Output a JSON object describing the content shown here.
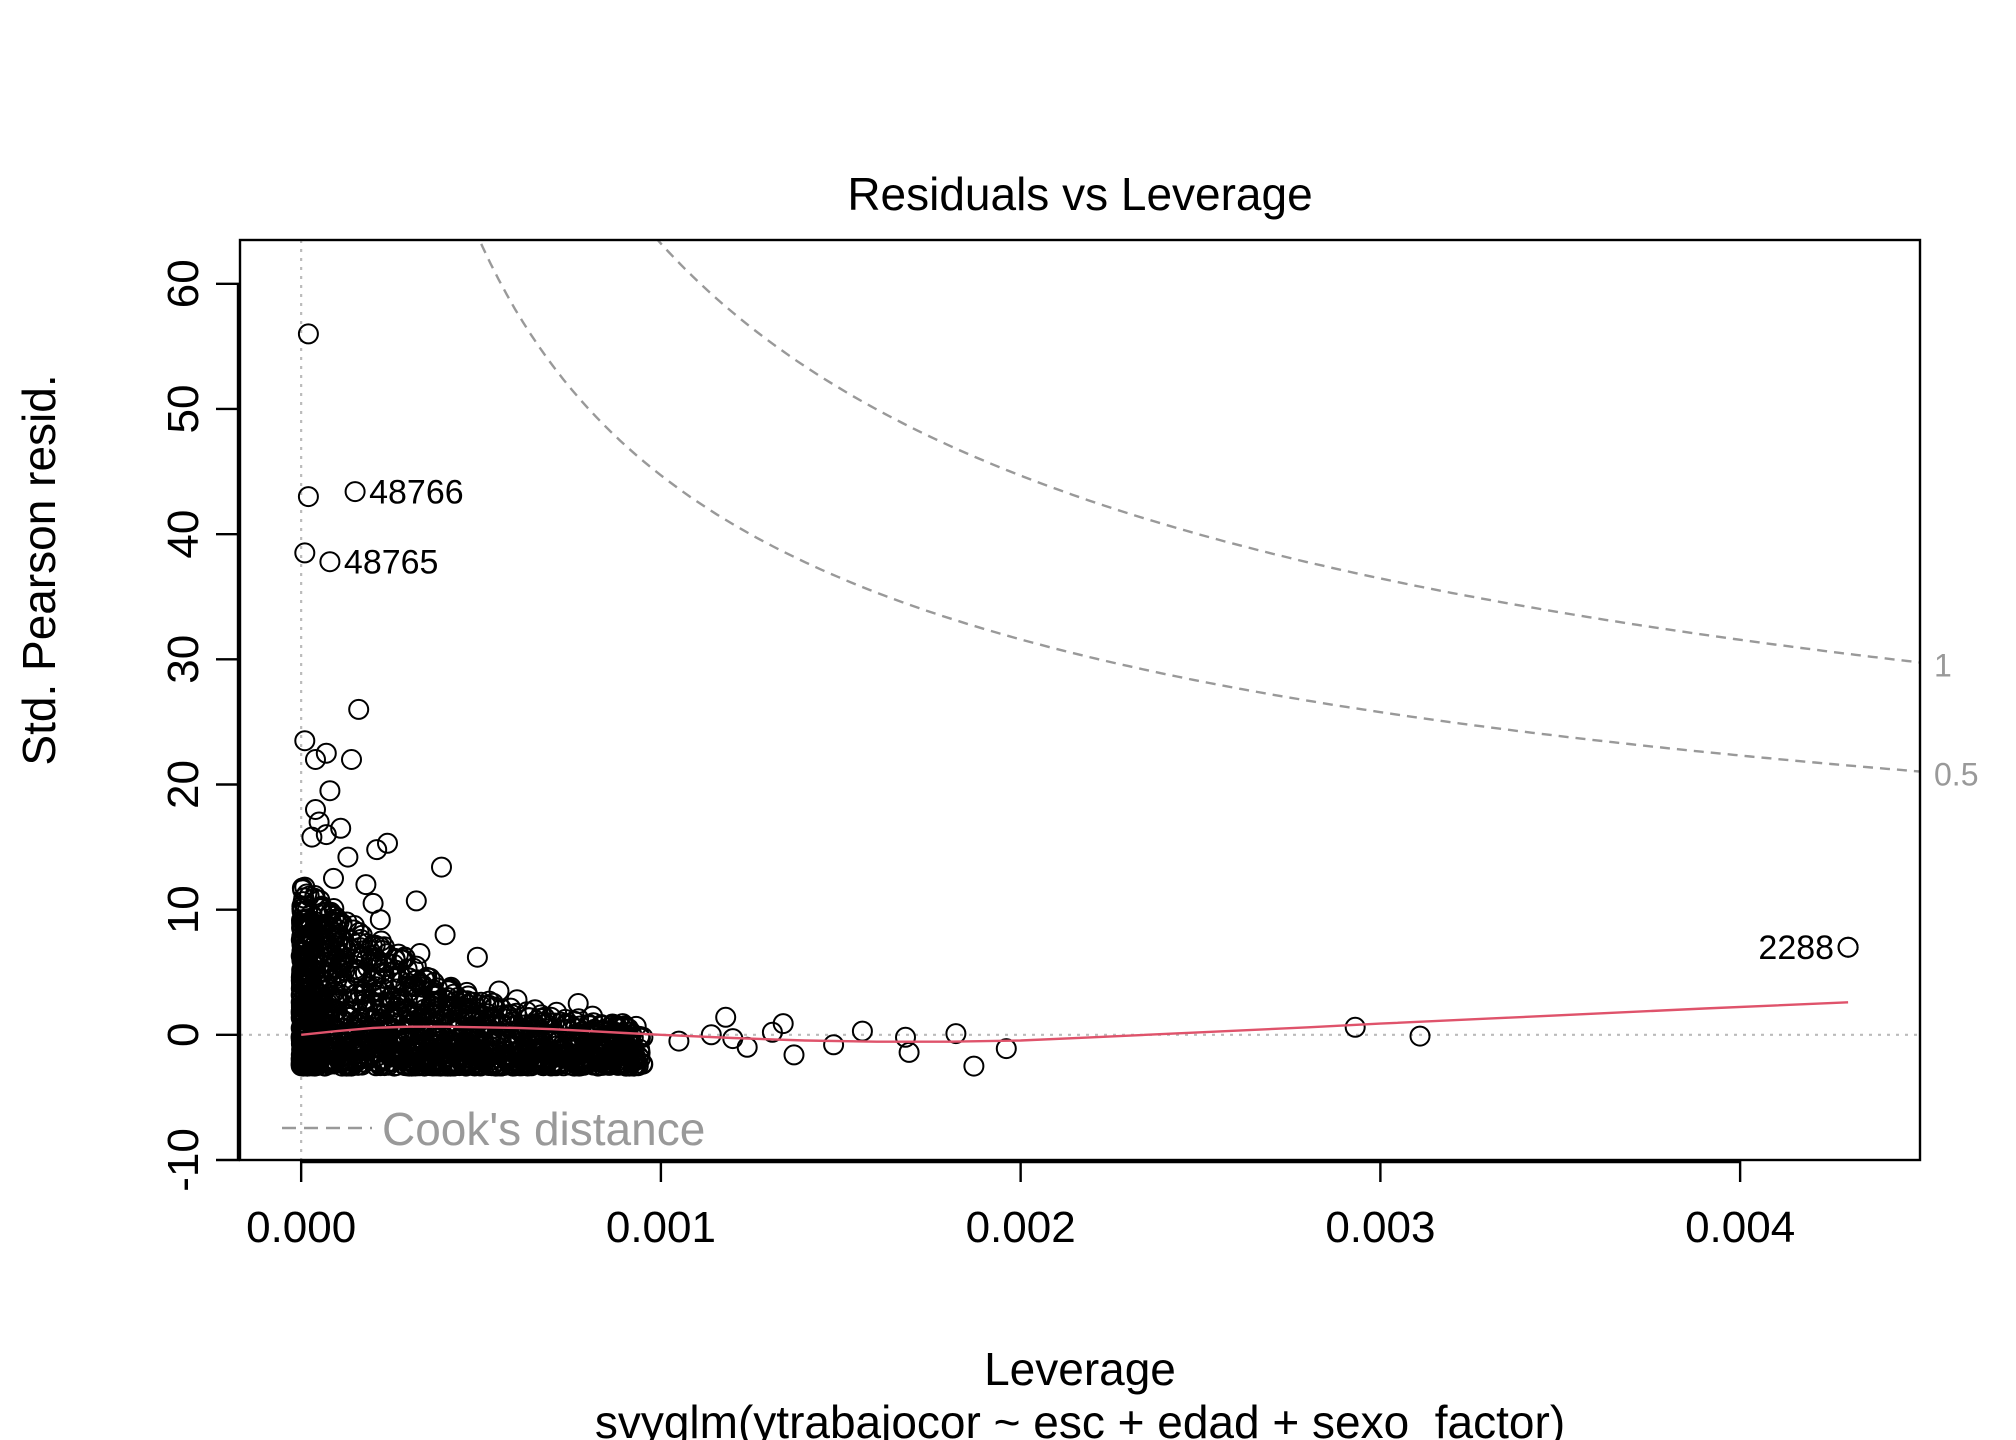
{
  "chart_data": {
    "type": "scatter",
    "title": "Residuals vs Leverage",
    "xlabel": "Leverage",
    "subtitle": "svyglm(ytrabajocor ~ esc + edad + sexo_factor)",
    "ylabel": "Std. Pearson resid.",
    "xlim": [
      -0.00017,
      0.0045
    ],
    "ylim": [
      -10,
      63.5
    ],
    "x_ticks": [
      "0.000",
      "0.001",
      "0.002",
      "0.003",
      "0.004"
    ],
    "x_tick_values": [
      0,
      0.001,
      0.002,
      0.003,
      0.004
    ],
    "y_ticks": [
      "-10",
      "0",
      "10",
      "20",
      "30",
      "40",
      "50",
      "60"
    ],
    "y_tick_values": [
      -10,
      0,
      10,
      20,
      30,
      40,
      50,
      60
    ],
    "legend": {
      "label": "Cook's distance",
      "placement": "bottom-left",
      "style": "dashed grey"
    },
    "reference_lines": {
      "h": 0,
      "v": 0,
      "style": "dotted grey"
    },
    "cooks_contours": [
      {
        "label": "1",
        "level": 1
      },
      {
        "label": "0.5",
        "level": 0.5
      }
    ],
    "labeled_points": [
      {
        "label": "48766",
        "x": 0.00015,
        "y": 43.4
      },
      {
        "label": "48765",
        "x": 8e-05,
        "y": 37.8
      },
      {
        "label": "2288",
        "x": 0.0043,
        "y": 7.0
      }
    ],
    "outlier_points": [
      {
        "x": 2e-05,
        "y": 56.0
      },
      {
        "x": 2e-05,
        "y": 43.0
      },
      {
        "x": 1e-05,
        "y": 38.5
      },
      {
        "x": 0.00016,
        "y": 26.0
      },
      {
        "x": 1e-05,
        "y": 23.5
      },
      {
        "x": 7e-05,
        "y": 22.5
      },
      {
        "x": 0.00014,
        "y": 22.0
      },
      {
        "x": 4e-05,
        "y": 22.0
      },
      {
        "x": 8e-05,
        "y": 19.5
      },
      {
        "x": 4e-05,
        "y": 18.0
      },
      {
        "x": 5e-05,
        "y": 17.0
      },
      {
        "x": 0.00011,
        "y": 16.5
      },
      {
        "x": 7e-05,
        "y": 16.0
      },
      {
        "x": 3e-05,
        "y": 15.8
      },
      {
        "x": 0.00024,
        "y": 15.3
      },
      {
        "x": 0.00021,
        "y": 14.8
      },
      {
        "x": 0.00013,
        "y": 14.2
      },
      {
        "x": 0.00039,
        "y": 13.4
      },
      {
        "x": 9e-05,
        "y": 12.5
      },
      {
        "x": 0.00018,
        "y": 12.0
      },
      {
        "x": 1e-05,
        "y": 11.8
      },
      {
        "x": 0.00032,
        "y": 10.7
      },
      {
        "x": 0.0002,
        "y": 10.5
      },
      {
        "x": 0.00022,
        "y": 9.2
      },
      {
        "x": 0.0004,
        "y": 8.0
      },
      {
        "x": 0.00033,
        "y": 6.5
      },
      {
        "x": 0.00049,
        "y": 6.2
      },
      {
        "x": 0.00055,
        "y": 3.5
      },
      {
        "x": 0.0006,
        "y": 2.8
      },
      {
        "x": 0.00065,
        "y": 2.0
      },
      {
        "x": 0.00071,
        "y": 1.8
      },
      {
        "x": 0.00077,
        "y": 2.5
      },
      {
        "x": 0.00081,
        "y": 1.5
      },
      {
        "x": 0.00087,
        "y": 0.8
      },
      {
        "x": 0.00091,
        "y": 0.5
      },
      {
        "x": 0.00095,
        "y": -0.2
      },
      {
        "x": 0.00105,
        "y": -0.5
      },
      {
        "x": 0.00114,
        "y": 0.0
      },
      {
        "x": 0.00118,
        "y": 1.4
      },
      {
        "x": 0.0012,
        "y": -0.3
      },
      {
        "x": 0.00124,
        "y": -1.0
      },
      {
        "x": 0.00131,
        "y": 0.2
      },
      {
        "x": 0.00134,
        "y": 0.9
      },
      {
        "x": 0.00137,
        "y": -1.6
      },
      {
        "x": 0.00148,
        "y": -0.8
      },
      {
        "x": 0.00156,
        "y": 0.3
      },
      {
        "x": 0.00168,
        "y": -0.2
      },
      {
        "x": 0.00169,
        "y": -1.4
      },
      {
        "x": 0.00182,
        "y": 0.1
      },
      {
        "x": 0.00187,
        "y": -2.5
      },
      {
        "x": 0.00196,
        "y": -1.1
      },
      {
        "x": 0.00293,
        "y": 0.6
      },
      {
        "x": 0.00311,
        "y": -0.1
      },
      {
        "x": 0.0043,
        "y": 7.0
      }
    ],
    "dense_cluster": {
      "description_free": true,
      "x_range": [
        0.0,
        0.00095
      ],
      "y_min": -2.5,
      "y_max_by_x": [
        [
          0.0,
          12.0
        ],
        [
          0.0001,
          10.0
        ],
        [
          0.0002,
          8.0
        ],
        [
          0.0003,
          6.0
        ],
        [
          0.0004,
          4.0
        ],
        [
          0.0005,
          3.0
        ],
        [
          0.0006,
          2.0
        ],
        [
          0.0007,
          1.5
        ],
        [
          0.00095,
          0.8
        ]
      ]
    },
    "smooth_line": {
      "color": "#DF536B",
      "x": [
        0.0,
        0.0001,
        0.0002,
        0.0003,
        0.0004,
        0.0005,
        0.0006,
        0.0007,
        0.0008,
        0.0009,
        0.001,
        0.0012,
        0.0014,
        0.0016,
        0.0018,
        0.002,
        0.0022,
        0.0025,
        0.0028,
        0.003,
        0.0033,
        0.0036,
        0.0039,
        0.0043
      ],
      "y": [
        0.0,
        0.3,
        0.55,
        0.65,
        0.65,
        0.6,
        0.55,
        0.45,
        0.3,
        0.15,
        0.0,
        -0.25,
        -0.45,
        -0.55,
        -0.55,
        -0.45,
        -0.2,
        0.2,
        0.6,
        0.9,
        1.3,
        1.7,
        2.1,
        2.6
      ]
    }
  }
}
